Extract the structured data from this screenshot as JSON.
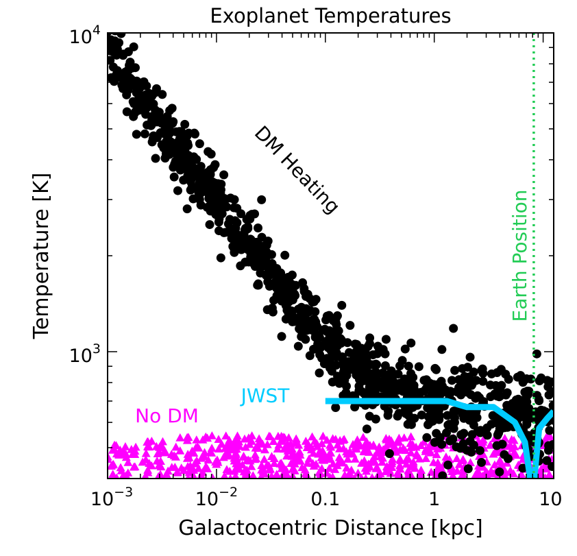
{
  "chart_data": {
    "type": "scatter",
    "title": "Exoplanet Temperatures",
    "xlabel": "Galactocentric Distance [kpc]",
    "ylabel": "Temperature [K]",
    "x_scale": "log",
    "y_scale": "log",
    "xlim": [
      0.001,
      12.5
    ],
    "ylim": [
      400,
      10000
    ],
    "x_ticks": [
      {
        "value": 0.001,
        "base": "10",
        "exp": "−3"
      },
      {
        "value": 0.01,
        "base": "10",
        "exp": "−2"
      },
      {
        "value": 0.1,
        "text": "0.1"
      },
      {
        "value": 1,
        "text": "1"
      },
      {
        "value": 10,
        "text": "10"
      }
    ],
    "y_ticks": [
      {
        "value": 1000,
        "base": "10",
        "exp": "3"
      },
      {
        "value": 10000,
        "base": "10",
        "exp": "4"
      }
    ],
    "grid": false,
    "series": [
      {
        "color": "#000000",
        "marker": "circle",
        "trend": [
          [
            0.001,
            9000
          ],
          [
            0.003,
            5200
          ],
          [
            0.01,
            3000
          ],
          [
            0.03,
            1800
          ],
          [
            0.1,
            1050
          ],
          [
            0.3,
            780
          ],
          [
            1,
            680
          ],
          [
            3,
            650
          ],
          [
            10,
            640
          ],
          [
            12.5,
            640
          ]
        ],
        "count": 1100
      },
      {
        "color": "#ff00ff",
        "marker": "triangle",
        "y_range": [
          400,
          545
        ],
        "count": 650
      },
      {
        "color": "#00ccff",
        "marker": "line",
        "points": [
          [
            0.1,
            700
          ],
          [
            1.3,
            700
          ],
          [
            2.0,
            670
          ],
          [
            3.5,
            670
          ],
          [
            5.5,
            600
          ],
          [
            6.8,
            520
          ],
          [
            7.6,
            400
          ],
          [
            8.3,
            400
          ],
          [
            9.2,
            575
          ],
          [
            11.0,
            620
          ],
          [
            12.5,
            650
          ]
        ]
      },
      {
        "color": "#22cc55",
        "marker": "dotted-vline",
        "x": 8.2
      }
    ],
    "annotations": [
      {
        "text": "DM Heating",
        "color": "#000000",
        "x": 0.05,
        "y": 3600,
        "rotation": 46
      },
      {
        "text": "No DM",
        "color": "#ff00ff",
        "x": 0.0035,
        "y": 600,
        "rotation": 0
      },
      {
        "text": "JWST",
        "color": "#00ccff",
        "x": 0.028,
        "y": 695,
        "rotation": 0
      },
      {
        "text": "Earth Position",
        "color": "#22cc55",
        "x": 7.0,
        "y": 2000,
        "rotation": -90
      }
    ]
  }
}
